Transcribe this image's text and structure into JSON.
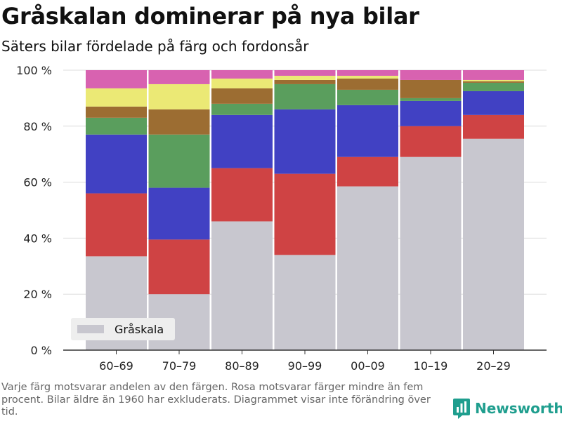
{
  "title": "Gråskalan dominerar på nya bilar",
  "subtitle": "Säters bilar fördelade på färg och fordonsår",
  "note": "Varje färg motsvarar andelen av den färgen. Rosa motsvarar färger mindre än fem procent. Bilar äldre än 1960 har exkluderats. Diagrammet visar inte förändring över tid.",
  "brand": {
    "name": "Newsworthy",
    "color": "#1f9e8e",
    "logo_icon": "bar-chart-logo-icon"
  },
  "chart_data": {
    "type": "bar",
    "stacked": true,
    "categories": [
      "60–69",
      "70–79",
      "80–89",
      "90–99",
      "00–09",
      "10–19",
      "20–29"
    ],
    "y_unit_suffix": " %",
    "ylim": [
      0,
      100
    ],
    "yticks": [
      0,
      20,
      40,
      60,
      80,
      100
    ],
    "grid": true,
    "legend": {
      "position": "bottom-left",
      "entries": [
        "Gråskala"
      ]
    },
    "series": [
      {
        "name": "Gråskala",
        "color": "#c8c7cf",
        "values": [
          33.5,
          20,
          46,
          34,
          58.5,
          69,
          75.5
        ]
      },
      {
        "color": "#cf4344",
        "values": [
          22.5,
          19.5,
          19,
          29,
          10.5,
          11,
          8.5
        ]
      },
      {
        "color": "#4141c3",
        "values": [
          21,
          18.5,
          19,
          23,
          18.5,
          9,
          8.5
        ]
      },
      {
        "color": "#5a9e5d",
        "values": [
          6,
          19,
          4,
          9,
          5.5,
          1,
          3
        ]
      },
      {
        "color": "#9c6d32",
        "values": [
          4,
          9,
          5.5,
          1.5,
          4,
          6.5,
          0.5
        ]
      },
      {
        "color": "#ebe975",
        "values": [
          6.5,
          9,
          3.5,
          1.5,
          1,
          0,
          0.5
        ]
      },
      {
        "color": "#d862b0",
        "values": [
          6.5,
          5,
          3,
          2,
          2,
          3.5,
          3.5
        ]
      }
    ]
  }
}
